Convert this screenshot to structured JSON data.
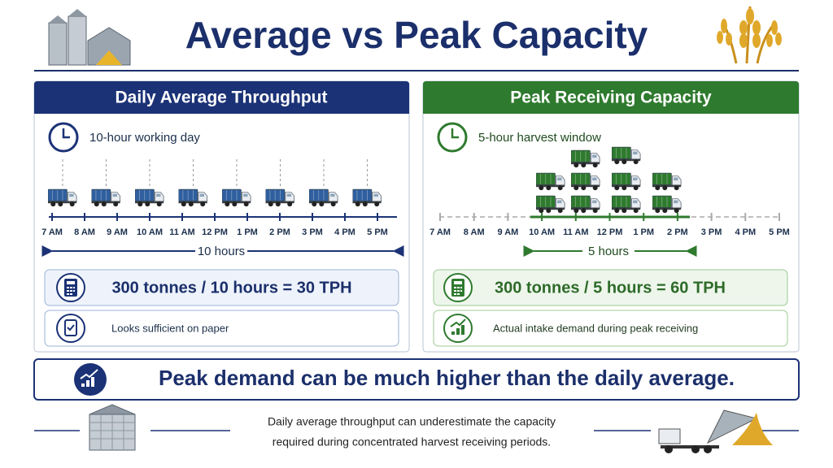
{
  "title": "Average vs Peak Capacity",
  "panels": [
    {
      "header": "Daily Average Throughput",
      "subtitle": "10-hour working day",
      "times": [
        "7 AM",
        "8 AM",
        "9 AM",
        "10 AM",
        "11 AM",
        "12 PM",
        "1 PM",
        "2 PM",
        "3 PM",
        "4 PM",
        "5 PM"
      ],
      "span_label": "10 hours",
      "formula": "300 tonnes / 10 hours = 30 TPH",
      "note": "Looks sufficient on paper"
    },
    {
      "header": "Peak Receiving Capacity",
      "subtitle": "5-hour harvest window",
      "times": [
        "7 AM",
        "8 AM",
        "9 AM",
        "10 AM",
        "11 AM",
        "12 PM",
        "1 PM",
        "2 PM",
        "3 PM",
        "4 PM",
        "5 PM"
      ],
      "span_label": "5 hours",
      "formula": "300 tonnes / 5 hours = 60 TPH",
      "note": "Actual intake demand during peak receiving"
    }
  ],
  "banner": "Peak demand can be much higher than the daily average.",
  "footer": {
    "lines": [
      "Daily average throughput can underestimate the capacity",
      "required during concentrated harvest receiving periods."
    ]
  }
}
